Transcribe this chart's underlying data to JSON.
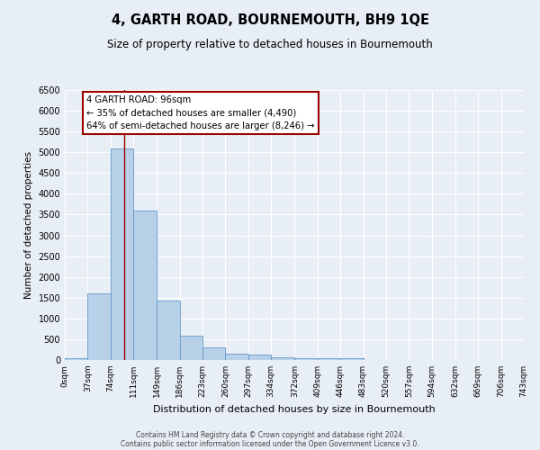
{
  "title": "4, GARTH ROAD, BOURNEMOUTH, BH9 1QE",
  "subtitle": "Size of property relative to detached houses in Bournemouth",
  "xlabel": "Distribution of detached houses by size in Bournemouth",
  "ylabel": "Number of detached properties",
  "bar_color": "#b8d0e8",
  "bar_edge_color": "#6699cc",
  "background_color": "#e8eef5",
  "grid_color": "#ffffff",
  "bin_edges": [
    0,
    37,
    74,
    111,
    149,
    186,
    223,
    260,
    297,
    334,
    372,
    409,
    446,
    483,
    520,
    557,
    594,
    632,
    669,
    706,
    743
  ],
  "bar_heights": [
    50,
    1600,
    5100,
    3600,
    1430,
    580,
    300,
    150,
    120,
    75,
    50,
    50,
    40,
    0,
    0,
    0,
    0,
    0,
    0,
    0
  ],
  "tick_labels": [
    "0sqm",
    "37sqm",
    "74sqm",
    "111sqm",
    "149sqm",
    "186sqm",
    "223sqm",
    "260sqm",
    "297sqm",
    "334sqm",
    "372sqm",
    "409sqm",
    "446sqm",
    "483sqm",
    "520sqm",
    "557sqm",
    "594sqm",
    "632sqm",
    "669sqm",
    "706sqm",
    "743sqm"
  ],
  "ylim": [
    0,
    6500
  ],
  "yticks": [
    0,
    500,
    1000,
    1500,
    2000,
    2500,
    3000,
    3500,
    4000,
    4500,
    5000,
    5500,
    6000,
    6500
  ],
  "vline_x": 96,
  "vline_color": "#990000",
  "annotation_box_title": "4 GARTH ROAD: 96sqm",
  "annotation_line1": "← 35% of detached houses are smaller (4,490)",
  "annotation_line2": "64% of semi-detached houses are larger (8,246) →",
  "annotation_box_edge_color": "#990000",
  "footnote1": "Contains HM Land Registry data © Crown copyright and database right 2024.",
  "footnote2": "Contains public sector information licensed under the Open Government Licence v3.0."
}
